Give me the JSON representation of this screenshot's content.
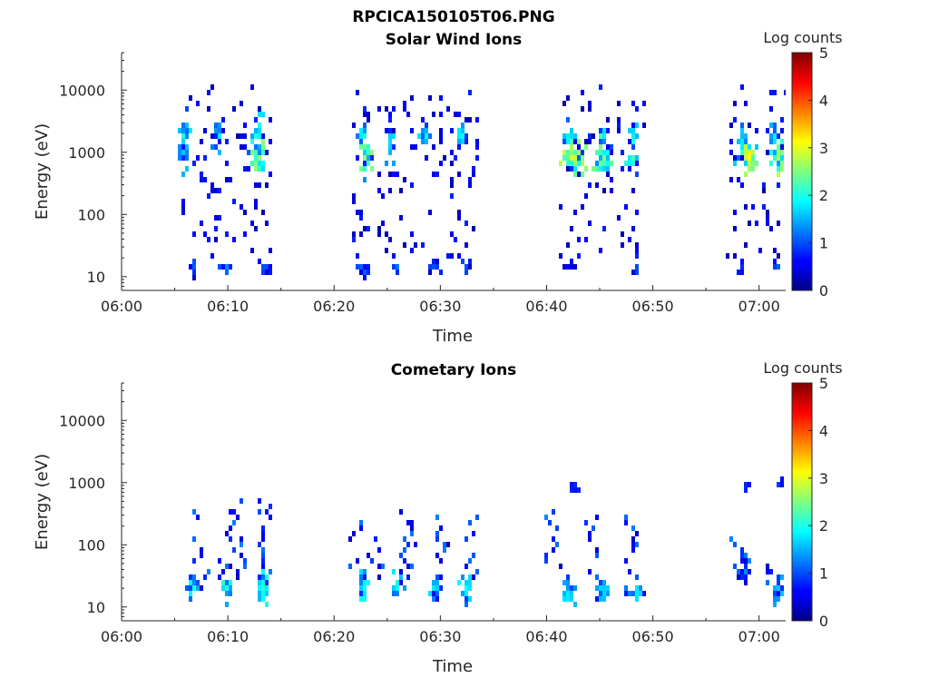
{
  "figure": {
    "title": "RPCICA150105T06.PNG"
  },
  "chart_data": [
    {
      "type": "heatmap",
      "title": "Solar Wind Ions",
      "xlabel": "Time",
      "ylabel": "Energy (eV)",
      "x_ticks": [
        "06:00",
        "06:10",
        "06:20",
        "06:30",
        "06:40",
        "06:50",
        "07:00"
      ],
      "x_range_minutes": [
        0,
        62.5
      ],
      "y_scale": "log",
      "y_ticks": [
        "10",
        "100",
        "1000",
        "10000"
      ],
      "y_range": [
        6,
        40000
      ],
      "colorbar": {
        "label": "Log counts",
        "range": [
          0,
          5
        ],
        "ticks": [
          "0",
          "1",
          "2",
          "3",
          "4",
          "5"
        ],
        "colormap": "jet"
      },
      "clusters": [
        {
          "t": 5.8,
          "e": 1800,
          "dt": 0.5,
          "de": 0.3,
          "level": 2.0,
          "n": 18
        },
        {
          "t": 5.8,
          "e": 900,
          "dt": 0.4,
          "de": 0.25,
          "level": 1.6,
          "n": 12
        },
        {
          "t": 8.9,
          "e": 1800,
          "dt": 0.4,
          "de": 0.25,
          "level": 1.8,
          "n": 14
        },
        {
          "t": 12.5,
          "e": 1700,
          "dt": 0.6,
          "de": 0.3,
          "level": 2.0,
          "n": 20
        },
        {
          "t": 12.7,
          "e": 800,
          "dt": 0.7,
          "de": 0.25,
          "level": 2.6,
          "n": 30
        },
        {
          "t": 22.5,
          "e": 1700,
          "dt": 0.4,
          "de": 0.3,
          "level": 1.8,
          "n": 14
        },
        {
          "t": 22.8,
          "e": 800,
          "dt": 0.6,
          "de": 0.25,
          "level": 2.6,
          "n": 28
        },
        {
          "t": 25.2,
          "e": 1500,
          "dt": 0.4,
          "de": 0.3,
          "level": 1.7,
          "n": 14
        },
        {
          "t": 28.4,
          "e": 1800,
          "dt": 0.5,
          "de": 0.2,
          "level": 1.9,
          "n": 16
        },
        {
          "t": 31.8,
          "e": 1800,
          "dt": 0.5,
          "de": 0.2,
          "level": 1.9,
          "n": 16
        },
        {
          "t": 41.7,
          "e": 1700,
          "dt": 0.5,
          "de": 0.2,
          "level": 1.8,
          "n": 16
        },
        {
          "t": 42.2,
          "e": 800,
          "dt": 1.0,
          "de": 0.25,
          "level": 2.9,
          "n": 46
        },
        {
          "t": 45.1,
          "e": 1800,
          "dt": 0.5,
          "de": 0.2,
          "level": 1.8,
          "n": 14
        },
        {
          "t": 45.2,
          "e": 800,
          "dt": 0.8,
          "de": 0.25,
          "level": 2.5,
          "n": 34
        },
        {
          "t": 47.9,
          "e": 1800,
          "dt": 0.5,
          "de": 0.2,
          "level": 1.8,
          "n": 14
        },
        {
          "t": 47.9,
          "e": 800,
          "dt": 0.5,
          "de": 0.2,
          "level": 2.2,
          "n": 16
        },
        {
          "t": 58.3,
          "e": 1600,
          "dt": 0.5,
          "de": 0.2,
          "level": 1.8,
          "n": 16
        },
        {
          "t": 58.8,
          "e": 800,
          "dt": 0.8,
          "de": 0.2,
          "level": 3.1,
          "n": 40
        },
        {
          "t": 61.2,
          "e": 1800,
          "dt": 0.5,
          "de": 0.2,
          "level": 1.8,
          "n": 16
        },
        {
          "t": 61.7,
          "e": 800,
          "dt": 0.6,
          "de": 0.2,
          "level": 2.8,
          "n": 30
        },
        {
          "t": 6.6,
          "e": 14,
          "dt": 0.4,
          "de": 0.1,
          "level": 1.1,
          "n": 10
        },
        {
          "t": 9.8,
          "e": 14,
          "dt": 0.5,
          "de": 0.1,
          "level": 1.3,
          "n": 12
        },
        {
          "t": 13.3,
          "e": 14,
          "dt": 0.5,
          "de": 0.1,
          "level": 1.0,
          "n": 12
        },
        {
          "t": 22.5,
          "e": 14,
          "dt": 0.6,
          "de": 0.1,
          "level": 1.1,
          "n": 14
        },
        {
          "t": 25.8,
          "e": 14,
          "dt": 0.5,
          "de": 0.1,
          "level": 1.2,
          "n": 12
        },
        {
          "t": 29.2,
          "e": 14,
          "dt": 0.5,
          "de": 0.1,
          "level": 1.0,
          "n": 10
        },
        {
          "t": 32.2,
          "e": 14,
          "dt": 0.4,
          "de": 0.1,
          "level": 1.0,
          "n": 8
        },
        {
          "t": 42.0,
          "e": 15,
          "dt": 0.5,
          "de": 0.06,
          "level": 0.6,
          "n": 10
        },
        {
          "t": 48.3,
          "e": 14,
          "dt": 0.4,
          "de": 0.1,
          "level": 1.0,
          "n": 8
        },
        {
          "t": 58.2,
          "e": 14,
          "dt": 0.3,
          "de": 0.1,
          "level": 0.8,
          "n": 6
        },
        {
          "t": 61.5,
          "e": 14,
          "dt": 0.3,
          "de": 0.1,
          "level": 1.1,
          "n": 8
        }
      ],
      "scatter_windows": [
        [
          5.5,
          14
        ],
        [
          21.5,
          33.5
        ],
        [
          41,
          49
        ],
        [
          57,
          62.5
        ]
      ]
    },
    {
      "type": "heatmap",
      "title": "Cometary Ions",
      "xlabel": "Time",
      "ylabel": "Energy (eV)",
      "x_ticks": [
        "06:00",
        "06:10",
        "06:20",
        "06:30",
        "06:40",
        "06:50",
        "07:00"
      ],
      "x_range_minutes": [
        0,
        62.5
      ],
      "y_scale": "log",
      "y_ticks": [
        "10",
        "100",
        "1000",
        "10000"
      ],
      "y_range": [
        6,
        40000
      ],
      "colorbar": {
        "label": "Log counts",
        "range": [
          0,
          5
        ],
        "ticks": [
          "0",
          "1",
          "2",
          "3",
          "4",
          "5"
        ],
        "colormap": "jet"
      },
      "clusters": [
        {
          "t": 6.5,
          "e": 22,
          "dt": 0.4,
          "de": 0.18,
          "level": 2.0,
          "n": 24
        },
        {
          "t": 9.8,
          "e": 20,
          "dt": 0.5,
          "de": 0.2,
          "level": 2.1,
          "n": 26
        },
        {
          "t": 13.3,
          "e": 20,
          "dt": 0.5,
          "de": 0.2,
          "level": 2.0,
          "n": 26
        },
        {
          "t": 22.6,
          "e": 20,
          "dt": 0.5,
          "de": 0.2,
          "level": 2.0,
          "n": 26
        },
        {
          "t": 25.8,
          "e": 20,
          "dt": 0.4,
          "de": 0.2,
          "level": 1.9,
          "n": 22
        },
        {
          "t": 29.2,
          "e": 20,
          "dt": 0.4,
          "de": 0.2,
          "level": 1.8,
          "n": 22
        },
        {
          "t": 32.3,
          "e": 20,
          "dt": 0.4,
          "de": 0.2,
          "level": 1.9,
          "n": 20
        },
        {
          "t": 41.9,
          "e": 18,
          "dt": 0.5,
          "de": 0.2,
          "level": 1.8,
          "n": 22
        },
        {
          "t": 45.2,
          "e": 18,
          "dt": 0.5,
          "de": 0.2,
          "level": 1.7,
          "n": 22
        },
        {
          "t": 48.3,
          "e": 18,
          "dt": 0.5,
          "de": 0.2,
          "level": 1.8,
          "n": 22
        },
        {
          "t": 58.5,
          "e": 40,
          "dt": 0.6,
          "de": 0.25,
          "level": 1.3,
          "n": 20
        },
        {
          "t": 61.5,
          "e": 20,
          "dt": 0.4,
          "de": 0.2,
          "level": 1.6,
          "n": 16
        },
        {
          "t": 42.5,
          "e": 900,
          "dt": 0.4,
          "de": 0.08,
          "level": 0.8,
          "n": 6
        },
        {
          "t": 58.5,
          "e": 900,
          "dt": 0.3,
          "de": 0.08,
          "level": 0.8,
          "n": 5
        },
        {
          "t": 61.8,
          "e": 900,
          "dt": 0.2,
          "de": 0.08,
          "level": 0.9,
          "n": 3
        }
      ],
      "columns": [
        {
          "t": 7.2,
          "e_top": 400,
          "e_bot": 20
        },
        {
          "t": 9.7,
          "e_top": 400,
          "e_bot": 20
        },
        {
          "t": 10.8,
          "e_top": 600,
          "e_bot": 30
        },
        {
          "t": 13.5,
          "e_top": 600,
          "e_bot": 20
        },
        {
          "t": 21.8,
          "e_top": 300,
          "e_bot": 40
        },
        {
          "t": 23.8,
          "e_top": 150,
          "e_bot": 30
        },
        {
          "t": 26.8,
          "e_top": 400,
          "e_bot": 25
        },
        {
          "t": 30.0,
          "e_top": 300,
          "e_bot": 20
        },
        {
          "t": 32.8,
          "e_top": 300,
          "e_bot": 30
        },
        {
          "t": 40.5,
          "e_top": 400,
          "e_bot": 40
        },
        {
          "t": 44.0,
          "e_top": 300,
          "e_bot": 30
        },
        {
          "t": 47.8,
          "e_top": 400,
          "e_bot": 15
        },
        {
          "t": 57.8,
          "e_top": 150,
          "e_bot": 40
        },
        {
          "t": 60.8,
          "e_top": 80,
          "e_bot": 20
        }
      ]
    }
  ]
}
